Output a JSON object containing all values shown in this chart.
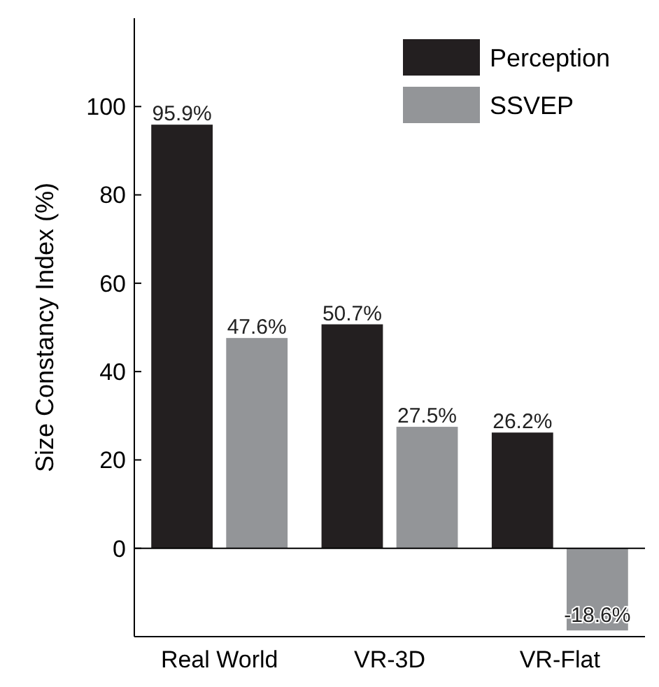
{
  "chart_data": {
    "type": "bar",
    "ylabel": "Size Constancy Index (%)",
    "categories": [
      "Real World",
      "VR-3D",
      "VR-Flat"
    ],
    "series": [
      {
        "name": "Perception",
        "color": "#231f20",
        "values": [
          95.9,
          50.7,
          26.2
        ]
      },
      {
        "name": "SSVEP",
        "color": "#939598",
        "values": [
          47.6,
          27.5,
          -18.6
        ]
      }
    ],
    "ylim": [
      -20,
      120
    ],
    "yticks": [
      0,
      20,
      40,
      60,
      80,
      100
    ],
    "value_labels": [
      [
        "95.9%",
        "50.7%",
        "26.2%"
      ],
      [
        "47.6%",
        "27.5%",
        "-18.6%"
      ]
    ],
    "ref_lines": [
      {
        "axis": "y",
        "value": 0,
        "color": "#000000"
      }
    ],
    "legend": "top right",
    "grid": false
  }
}
